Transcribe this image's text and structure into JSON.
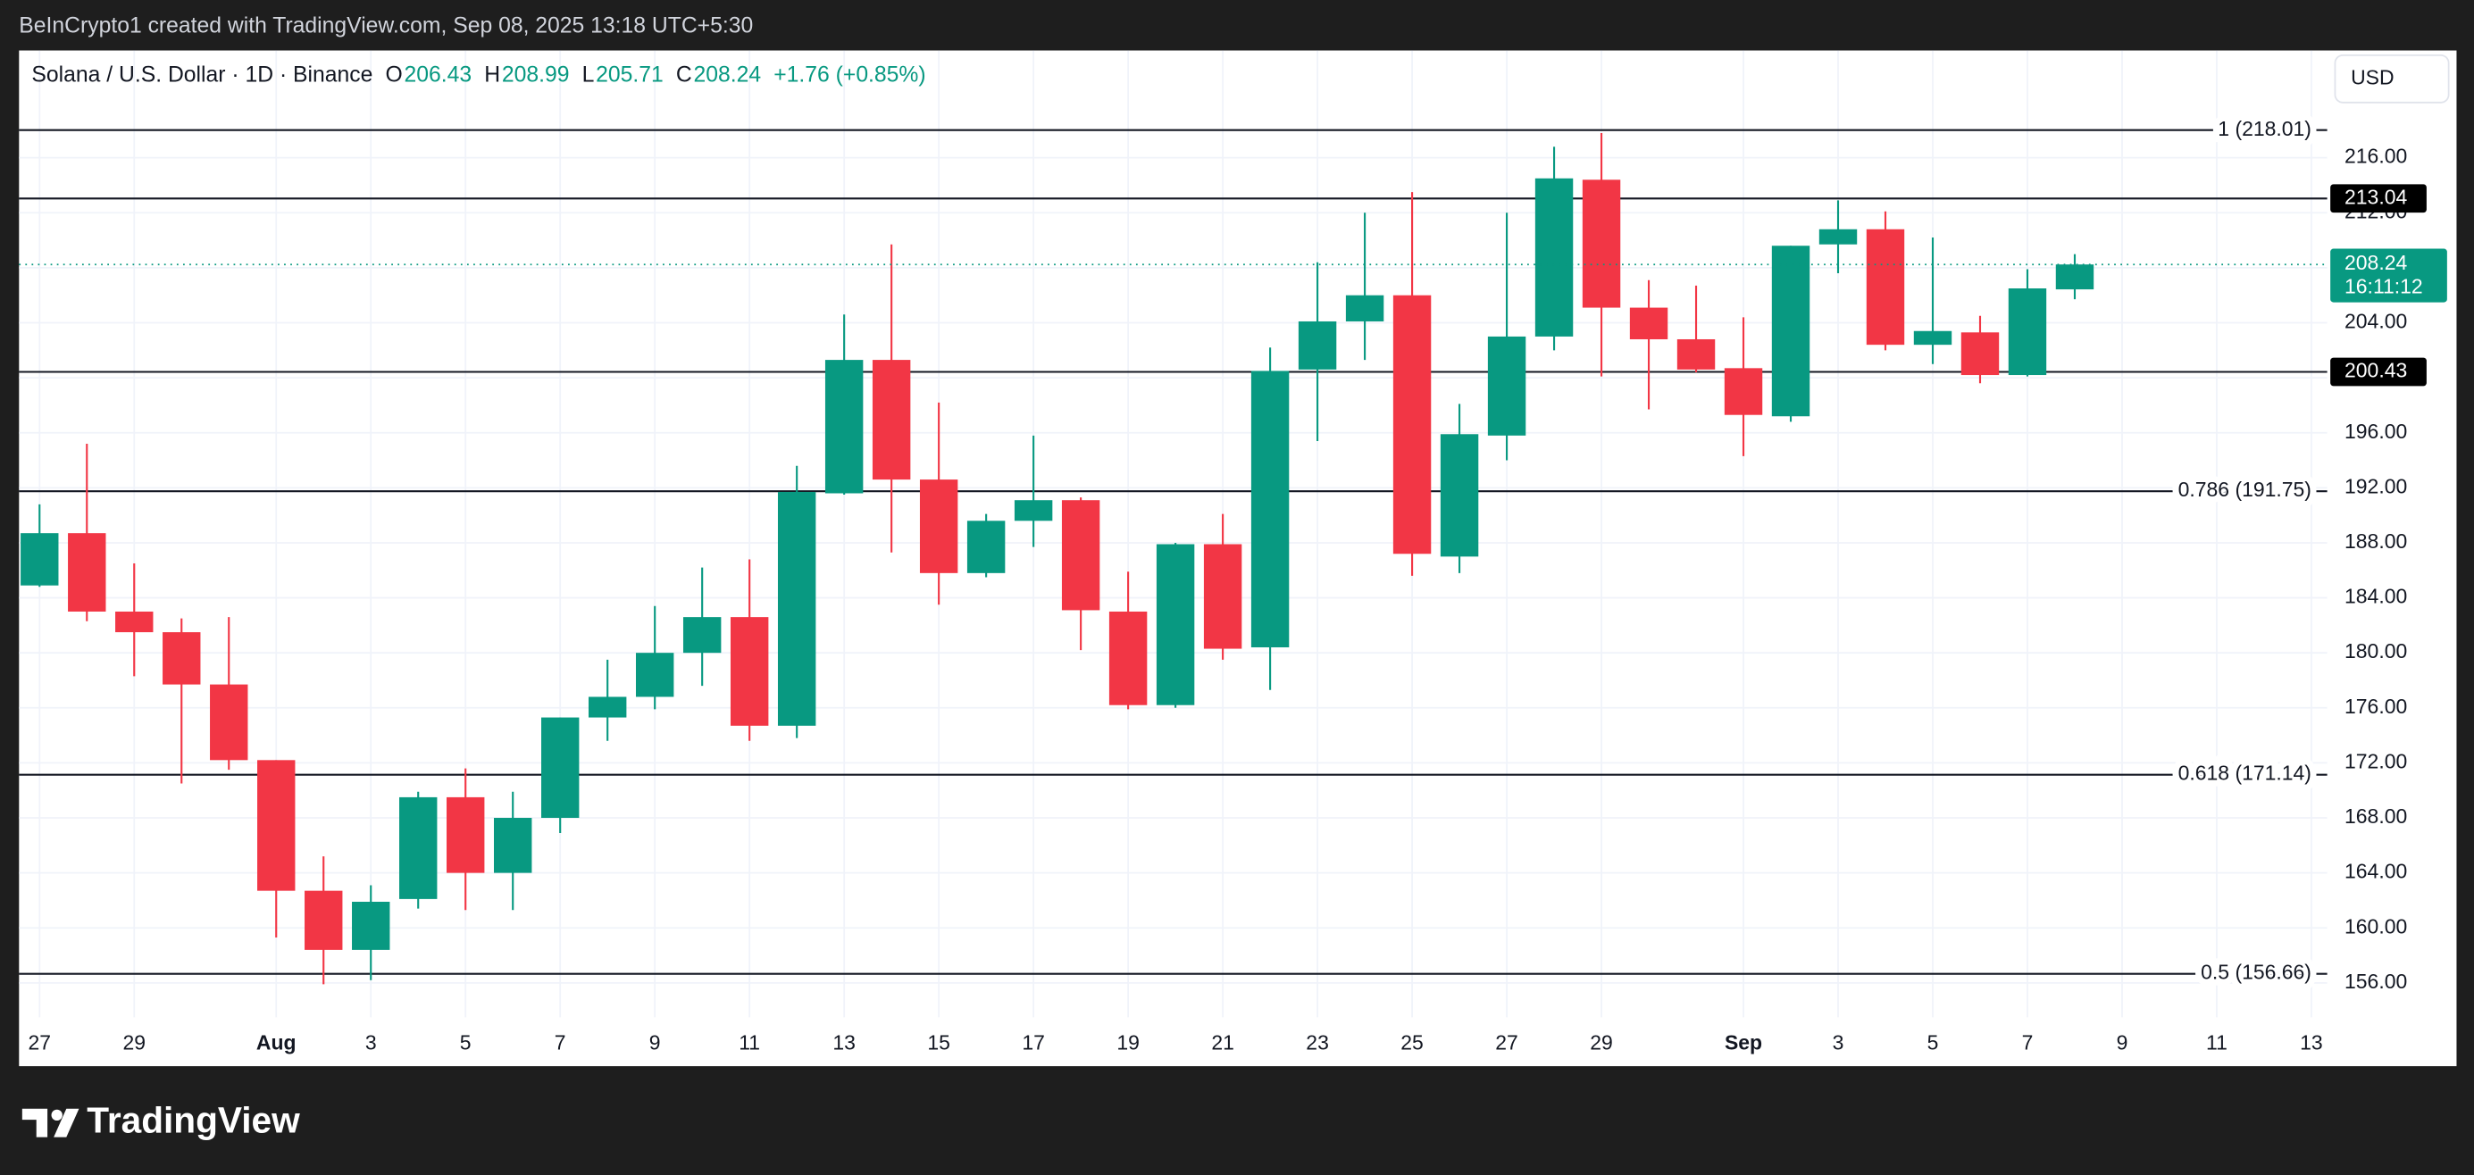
{
  "header": {
    "credit": "BeInCrypto1 created with TradingView.com, Sep 08, 2025 13:18 UTC+5:30"
  },
  "chart_data": {
    "type": "candlestick",
    "symbol": "Solana / U.S. Dollar · 1D · Binance",
    "legend": [
      {
        "label": "O",
        "value": 206.43
      },
      {
        "label": "H",
        "value": 208.99
      },
      {
        "label": "L",
        "value": 205.71
      },
      {
        "label": "C",
        "value": 208.24
      }
    ],
    "change": "+1.76 (+0.85%)",
    "currency": "USD",
    "countdown": "16:11:12",
    "up_color": "#089981",
    "down_color": "#f23645",
    "categories": [
      "27",
      null,
      "29",
      null,
      null,
      "Aug",
      null,
      "3",
      null,
      "5",
      null,
      "7",
      null,
      "9",
      null,
      "11",
      null,
      "13",
      null,
      "15",
      null,
      "17",
      null,
      "19",
      null,
      "21",
      null,
      "23",
      null,
      "25",
      null,
      "27",
      null,
      "29",
      null,
      null,
      "Sep",
      null,
      "3",
      null,
      "5",
      null,
      "7",
      null,
      "9",
      null,
      "11",
      null,
      "13"
    ],
    "open": [
      184.9,
      188.7,
      183.0,
      181.5,
      177.7,
      172.2,
      162.7,
      158.4,
      162.1,
      169.5,
      164.0,
      168.0,
      175.3,
      176.8,
      180.0,
      182.6,
      174.7,
      191.6,
      201.3,
      192.6,
      185.8,
      189.6,
      191.1,
      183.0,
      176.2,
      187.9,
      180.4,
      200.6,
      204.1,
      206.0,
      187.0,
      195.8,
      203.0,
      214.4,
      205.1,
      202.8,
      200.7,
      197.2,
      209.7,
      210.8,
      202.4,
      203.3,
      200.2,
      206.43,
      null,
      null,
      null,
      null,
      null
    ],
    "high": [
      190.8,
      195.2,
      186.5,
      182.5,
      182.6,
      172.2,
      165.2,
      163.1,
      169.9,
      171.6,
      169.9,
      175.3,
      179.5,
      183.4,
      186.2,
      186.8,
      193.6,
      204.6,
      209.7,
      198.2,
      190.1,
      195.8,
      191.3,
      185.9,
      188.0,
      190.1,
      202.2,
      208.4,
      212.0,
      213.5,
      198.1,
      212.0,
      216.8,
      217.8,
      207.1,
      206.7,
      204.4,
      209.6,
      212.9,
      212.1,
      210.2,
      204.5,
      207.9,
      208.99,
      null,
      null,
      null,
      null,
      null
    ],
    "low": [
      184.8,
      182.3,
      178.3,
      170.5,
      171.5,
      159.3,
      155.9,
      156.2,
      161.4,
      161.3,
      161.3,
      166.9,
      173.6,
      175.9,
      177.6,
      173.6,
      173.8,
      191.5,
      187.3,
      183.5,
      185.5,
      187.7,
      180.2,
      175.9,
      176.0,
      179.5,
      177.3,
      195.4,
      201.3,
      185.6,
      185.8,
      194.0,
      202.0,
      200.1,
      197.7,
      200.4,
      194.3,
      196.8,
      207.6,
      202.0,
      201.0,
      199.6,
      200.1,
      205.71,
      null,
      null,
      null,
      null,
      null
    ],
    "close": [
      188.7,
      183.0,
      181.5,
      177.7,
      172.2,
      162.7,
      158.4,
      161.9,
      169.5,
      164.0,
      168.0,
      175.3,
      176.8,
      180.0,
      182.6,
      174.7,
      191.7,
      201.3,
      192.6,
      185.8,
      189.6,
      191.1,
      183.1,
      176.2,
      187.9,
      180.3,
      200.5,
      204.1,
      206.0,
      187.2,
      195.9,
      203.0,
      214.5,
      205.1,
      202.8,
      200.6,
      197.3,
      209.6,
      210.8,
      202.4,
      203.4,
      200.2,
      206.5,
      208.24,
      null,
      null,
      null,
      null,
      null
    ],
    "ylim": [
      153.5,
      220.36
    ],
    "yticks": [
      {
        "value": 156,
        "label": "156.00"
      },
      {
        "value": 160,
        "label": "160.00"
      },
      {
        "value": 164,
        "label": "164.00"
      },
      {
        "value": 168,
        "label": "168.00"
      },
      {
        "value": 172,
        "label": "172.00"
      },
      {
        "value": 176,
        "label": "176.00"
      },
      {
        "value": 180,
        "label": "180.00"
      },
      {
        "value": 184,
        "label": "184.00"
      },
      {
        "value": 188,
        "label": "188.00"
      },
      {
        "value": 192,
        "label": "192.00"
      },
      {
        "value": 196,
        "label": "196.00"
      },
      {
        "value": 200,
        "label": "200.00"
      },
      {
        "value": 204,
        "label": "204.00"
      },
      {
        "value": 208,
        "label": "208.00"
      },
      {
        "value": 212,
        "label": "212.00"
      },
      {
        "value": 216,
        "label": "216.00"
      }
    ],
    "grid": true,
    "fib_levels": [
      {
        "value": 218.01,
        "label": "1 (218.01)"
      },
      {
        "value": 191.75,
        "label": "0.786 (191.75)"
      },
      {
        "value": 171.14,
        "label": "0.618 (171.14)"
      },
      {
        "value": 156.66,
        "label": "0.5 (156.66)"
      }
    ],
    "key_levels": [
      213.04,
      200.43
    ]
  },
  "footer": {
    "logo": "TradingView"
  }
}
